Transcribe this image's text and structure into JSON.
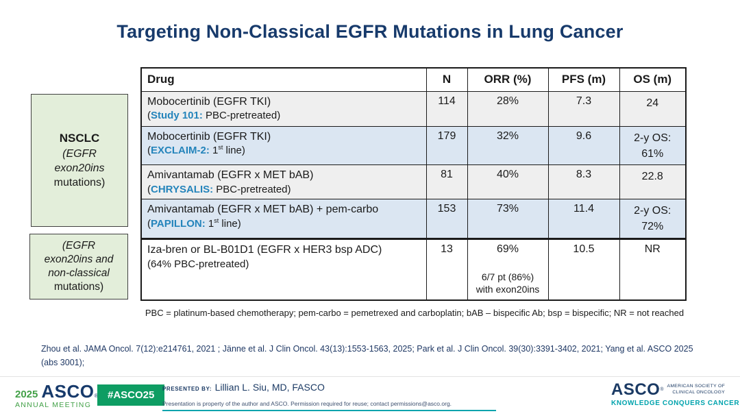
{
  "slide": {
    "title": "Targeting Non-Classical EGFR Mutations in Lung Cancer"
  },
  "left_boxes": {
    "box1": {
      "line1": "NSCLC",
      "line2": "(EGFR",
      "line3": "exon20ins",
      "line4": "mutations)"
    },
    "box2": {
      "line1": "(EGFR",
      "line2": "exon20ins and",
      "line3": "non-classical",
      "line4": "mutations)"
    }
  },
  "table": {
    "headers": {
      "drug": "Drug",
      "n": "N",
      "orr": "ORR (%)",
      "pfs": "PFS (m)",
      "os": "OS (m)"
    },
    "rows": [
      {
        "drug": "Mobocertinib (EGFR TKI)",
        "sub_open": "(",
        "sub_study": "Study 101:",
        "sub_rest": " PBC-pretreated)",
        "n": "114",
        "orr": "28%",
        "pfs": "7.3",
        "os": "24"
      },
      {
        "drug": "Mobocertinib (EGFR TKI)",
        "sub_open": "(",
        "sub_study": "EXCLAIM-2:",
        "sub_rest": " 1st line)",
        "n": "179",
        "orr": "32%",
        "pfs": "9.6",
        "os": "2-y OS:\n61%"
      },
      {
        "drug": "Amivantamab (EGFR x MET bAB)",
        "sub_open": "(",
        "sub_study": "CHRYSALIS:",
        "sub_rest": " PBC-pretreated)",
        "n": "81",
        "orr": "40%",
        "pfs": "8.3",
        "os": "22.8"
      },
      {
        "drug": "Amivantamab (EGFR x MET bAB) + pem-carbo",
        "sub_open": "(",
        "sub_study": "PAPILLON:",
        "sub_rest": " 1st line)",
        "n": "153",
        "orr": "73%",
        "pfs": "11.4",
        "os": "2-y OS:\n72%"
      }
    ]
  },
  "table2": {
    "row": {
      "drug": "Iza-bren or BL-B01D1 (EGFR x HER3 bsp ADC)",
      "sub": "(64% PBC-pretreated)",
      "n": "13",
      "orr_main": "69%",
      "orr_note": "6/7 pt (86%)\nwith exon20ins",
      "pfs": "10.5",
      "os": "NR"
    }
  },
  "footnote": "PBC = platinum-based chemotherapy; pem-carbo = pemetrexed and carboplatin; bAB – bispecific Ab; bsp = bispecific; NR = not reached",
  "citations": "Zhou et al. JAMA Oncol. 7(12):e214761, 2021 ; Jänne et al. J Clin Oncol. 43(13):1553-1563, 2025;  Park et al. J Clin Oncol. 39(30):3391-3402, 2021; Yang et al. ASCO 2025 (abs 3001);",
  "footer": {
    "meeting_year": "2025",
    "meeting_org": "ASCO",
    "reg_mark": "®",
    "meeting_sub": "ANNUAL MEETING",
    "hashtag": "#ASCO25",
    "presented_by_label": "PRESENTED BY:",
    "presenter": "Lillian L. Siu, MD, FASCO",
    "permission": "Presentation is property of the author and ASCO. Permission required for reuse; contact permissions@asco.org.",
    "org_name": "ASCO",
    "org_tagline_1": "AMERICAN SOCIETY OF",
    "org_tagline_2": "CLINICAL ONCOLOGY",
    "org_motto": "KNOWLEDGE CONQUERS CANCER"
  },
  "colors": {
    "title_navy": "#173a6b",
    "study_blue": "#2484bb",
    "row_gray": "#efefef",
    "row_blue": "#dbe6f2",
    "green_box": "#e3eeda",
    "badge_green": "#0e9d63",
    "logo_green": "#42a047",
    "teal": "#00a3ad"
  }
}
